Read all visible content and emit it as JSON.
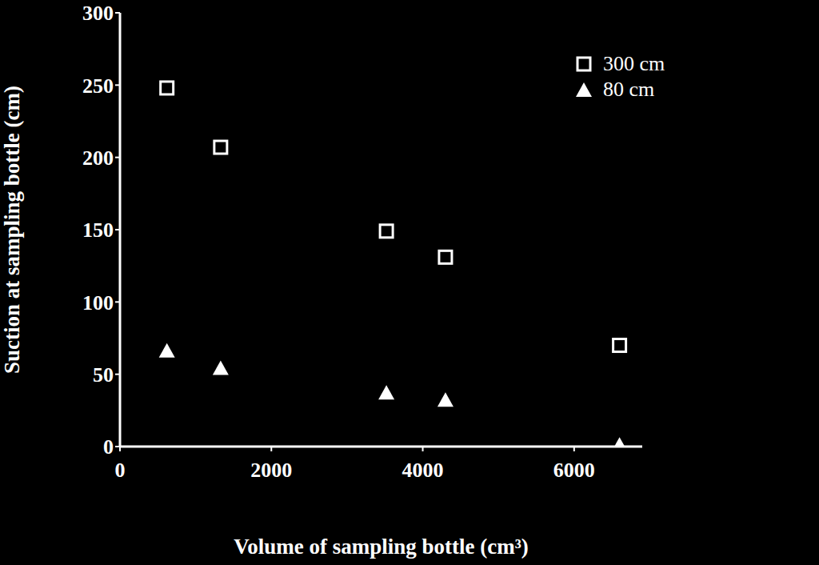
{
  "chart_data": {
    "type": "scatter",
    "x_label": "Volume of sampling bottle (cm³)",
    "y_label": "Suction at sampling bottle (cm)",
    "x": [
      620,
      1330,
      3520,
      4300,
      6600
    ],
    "series": [
      {
        "name": "300 cm",
        "color": "#ffffff",
        "marker": "square",
        "values": [
          248,
          207,
          149,
          131,
          70
        ]
      },
      {
        "name": "80 cm",
        "color": "#ffffff",
        "marker": "triangle",
        "values": [
          66,
          54,
          37,
          32,
          1
        ]
      }
    ],
    "xlim": [
      0,
      6900
    ],
    "xticks": [
      0,
      2000,
      4000,
      6000
    ],
    "ylim": [
      0,
      300
    ],
    "yticks": [
      0,
      50,
      100,
      150,
      200,
      250,
      300
    ],
    "grid": false,
    "legend": "upper right"
  }
}
